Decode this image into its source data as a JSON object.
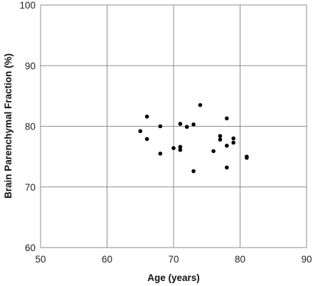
{
  "chart_data": {
    "type": "scatter",
    "title": "",
    "xlabel": "Age (years)",
    "ylabel": "Brain Parenchymal Fraction (%)",
    "xlim": [
      50,
      90
    ],
    "ylim": [
      60,
      100
    ],
    "x_ticks": [
      "50",
      "60",
      "70",
      "80",
      "90"
    ],
    "y_ticks": [
      "60",
      "70",
      "80",
      "90",
      "100"
    ],
    "grid": true,
    "legend": "none",
    "marker_color": "#000000",
    "grid_color": "#8c8c8c",
    "series": [
      {
        "points": [
          [
            65,
            79.2
          ],
          [
            66,
            81.6
          ],
          [
            66,
            77.9
          ],
          [
            68,
            80.0
          ],
          [
            68,
            75.5
          ],
          [
            70,
            76.4
          ],
          [
            71,
            80.4
          ],
          [
            71,
            76.6
          ],
          [
            71,
            76.1
          ],
          [
            72,
            79.9
          ],
          [
            73,
            80.3
          ],
          [
            73,
            72.6
          ],
          [
            74,
            83.5
          ],
          [
            76,
            75.9
          ],
          [
            77,
            78.4
          ],
          [
            77,
            77.8
          ],
          [
            78,
            81.3
          ],
          [
            78,
            76.8
          ],
          [
            78,
            73.2
          ],
          [
            79,
            78.0
          ],
          [
            79,
            77.3
          ],
          [
            81,
            75.0
          ],
          [
            81,
            74.8
          ]
        ]
      }
    ]
  }
}
